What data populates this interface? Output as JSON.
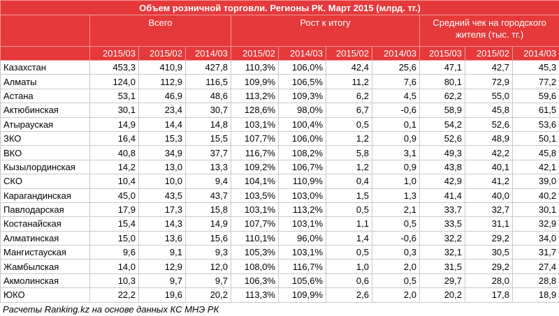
{
  "title": "Объем розничной торговли. Регионы РК. Март 2015 (млрд. тг.)",
  "groups": [
    {
      "label": "Всего",
      "span": 3
    },
    {
      "label": "Рост к итогу",
      "span": 4
    },
    {
      "label": "Средний чек на городского жителя (тыс. тг.)",
      "span": 3
    }
  ],
  "subheaders": [
    "2015/03",
    "2015/02",
    "2014/03",
    "2015/02",
    "2014/03",
    "2015/02",
    "2014/03",
    "2015/03",
    "2015/02",
    "2014/03"
  ],
  "rows": [
    [
      "Казахстан",
      "453,3",
      "410,9",
      "427,8",
      "110,3%",
      "106,0%",
      "42,4",
      "25,6",
      "47,1",
      "42,7",
      "45,3"
    ],
    [
      "Алматы",
      "124,0",
      "112,9",
      "116,5",
      "109,9%",
      "106,5%",
      "11,2",
      "7,6",
      "80,1",
      "72,9",
      "77,2"
    ],
    [
      "Астана",
      "53,1",
      "46,9",
      "48,6",
      "113,2%",
      "109,3%",
      "6,2",
      "4,5",
      "62,2",
      "55,0",
      "59,6"
    ],
    [
      "Актюбинская",
      "30,1",
      "23,4",
      "30,7",
      "128,6%",
      "98,0%",
      "6,7",
      "-0,6",
      "58,9",
      "45,8",
      "61,5"
    ],
    [
      "Атырауская",
      "14,9",
      "14,4",
      "14,8",
      "103,1%",
      "100,4%",
      "0,5",
      "0,1",
      "54,2",
      "52,6",
      "53,6"
    ],
    [
      "ЗКО",
      "16,4",
      "15,3",
      "15,5",
      "107,7%",
      "106,0%",
      "1,2",
      "0,9",
      "52,6",
      "48,9",
      "50,1"
    ],
    [
      "ВКО",
      "40,8",
      "34,9",
      "37,7",
      "116,7%",
      "108,2%",
      "5,8",
      "3,1",
      "49,3",
      "42,2",
      "45,8"
    ],
    [
      "Кызылординская",
      "14,2",
      "13,0",
      "13,3",
      "109,2%",
      "106,7%",
      "1,2",
      "0,9",
      "43,8",
      "40,1",
      "42,1"
    ],
    [
      "СКО",
      "10,4",
      "10,0",
      "9,4",
      "104,1%",
      "110,9%",
      "0,4",
      "1,0",
      "42,9",
      "41,2",
      "39,0"
    ],
    [
      "Карагандинская",
      "45,0",
      "43,5",
      "43,7",
      "103,5%",
      "103,0%",
      "1,5",
      "1,3",
      "41,4",
      "40,0",
      "40,2"
    ],
    [
      "Павлодарская",
      "17,9",
      "17,3",
      "15,8",
      "103,1%",
      "113,2%",
      "0,5",
      "2,1",
      "33,7",
      "32,7",
      "30,1"
    ],
    [
      "Костанайская",
      "15,4",
      "14,3",
      "14,9",
      "107,7%",
      "103,1%",
      "1,1",
      "0,5",
      "33,5",
      "31,1",
      "32,9"
    ],
    [
      "Алматинская",
      "15,0",
      "13,6",
      "15,6",
      "110,1%",
      "96,0%",
      "1,4",
      "-0,6",
      "32,2",
      "29,2",
      "34,0"
    ],
    [
      "Мангистауская",
      "9,6",
      "9,1",
      "9,3",
      "105,3%",
      "103,1%",
      "0,5",
      "0,3",
      "32,1",
      "30,5",
      "31,7"
    ],
    [
      "Жамбылская",
      "14,0",
      "12,9",
      "12,0",
      "108,0%",
      "116,7%",
      "1,0",
      "2,0",
      "31,5",
      "29,2",
      "27,4"
    ],
    [
      "Акмолинская",
      "10,3",
      "9,7",
      "9,7",
      "106,3%",
      "105,6%",
      "0,6",
      "0,5",
      "29,7",
      "28,0",
      "28,8"
    ],
    [
      "ЮКО",
      "22,2",
      "19,6",
      "20,2",
      "113,3%",
      "109,9%",
      "2,6",
      "2,0",
      "20,2",
      "17,8",
      "18,9"
    ]
  ],
  "footer": "Расчеты Ranking.kz на основе данных КС МНЭ РК"
}
